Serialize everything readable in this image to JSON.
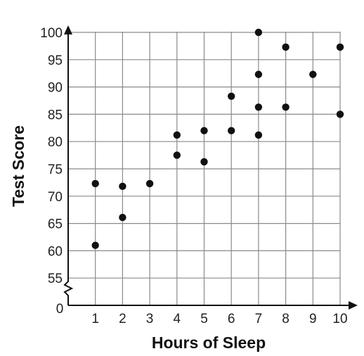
{
  "chart_data": {
    "type": "scatter",
    "xlabel": "Hours of Sleep",
    "ylabel": "Test Score",
    "origin_label": "0",
    "xlim": [
      0,
      10
    ],
    "ylim": [
      50,
      100
    ],
    "x_ticks": [
      1,
      2,
      3,
      4,
      5,
      6,
      7,
      8,
      9,
      10
    ],
    "y_ticks": [
      55,
      60,
      65,
      70,
      75,
      80,
      85,
      90,
      95,
      100
    ],
    "y_axis_break": true,
    "grid": true,
    "points": [
      {
        "x": 1,
        "y": 72.3
      },
      {
        "x": 1,
        "y": 61
      },
      {
        "x": 2,
        "y": 71.8
      },
      {
        "x": 2,
        "y": 66.1
      },
      {
        "x": 3,
        "y": 72.3
      },
      {
        "x": 4,
        "y": 81.2
      },
      {
        "x": 4,
        "y": 77.5
      },
      {
        "x": 5,
        "y": 82
      },
      {
        "x": 5,
        "y": 76.3
      },
      {
        "x": 6,
        "y": 88.3
      },
      {
        "x": 6,
        "y": 82
      },
      {
        "x": 7,
        "y": 100
      },
      {
        "x": 7,
        "y": 92.3
      },
      {
        "x": 7,
        "y": 86.3
      },
      {
        "x": 7,
        "y": 81.2
      },
      {
        "x": 8,
        "y": 97.3
      },
      {
        "x": 8,
        "y": 86.3
      },
      {
        "x": 9,
        "y": 92.3
      },
      {
        "x": 10,
        "y": 97.3
      },
      {
        "x": 10,
        "y": 85
      }
    ],
    "colors": {
      "points": "#111111",
      "grid": "#8a8a8a",
      "axis": "#111111"
    }
  }
}
